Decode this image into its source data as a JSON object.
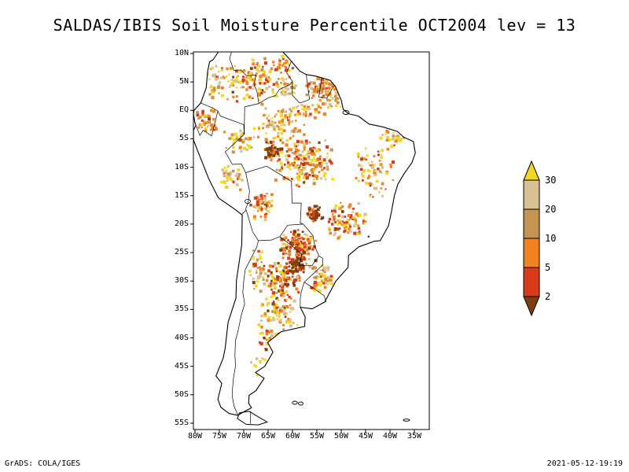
{
  "title": "SALDAS/IBIS Soil Moisture Percentile OCT2004 lev = 13",
  "footer": {
    "credit": "GrADS: COLA/IGES",
    "timestamp": "2021-05-12-19:19"
  },
  "axes": {
    "lat_labels": [
      "10N",
      "5N",
      "EQ",
      "5S",
      "10S",
      "15S",
      "20S",
      "25S",
      "30S",
      "35S",
      "40S",
      "45S",
      "50S",
      "55S"
    ],
    "lon_labels": [
      "80W",
      "75W",
      "70W",
      "65W",
      "60W",
      "55W",
      "50W",
      "45W",
      "40W",
      "35W"
    ]
  },
  "chart_data": {
    "type": "heatmap",
    "title": "SALDAS/IBIS Soil Moisture Percentile OCT2004 lev = 13",
    "region": "South America",
    "variable": "Soil Moisture Percentile",
    "time": "OCT2004",
    "level": 13,
    "xlim": [
      -80.3,
      -31.9
    ],
    "ylim": [
      -56.1,
      10.3
    ],
    "grid": false,
    "colorbar": {
      "orientation": "vertical",
      "levels": [
        "30",
        "20",
        "10",
        "5",
        "2"
      ],
      "colors": [
        "#f0d722",
        "#d9c196",
        "#c49552",
        "#f28322",
        "#d93a1c",
        "#7d3f10"
      ],
      "meaning": [
        "above 30",
        "20-30",
        "10-20",
        "5-10",
        "2-5",
        "below 2"
      ]
    },
    "clusters": [
      {
        "cx": 75,
        "cy": 35,
        "rx": 45,
        "ry": 32,
        "n": 130,
        "mix": [
          3,
          1,
          0.5,
          2,
          1,
          0.2
        ]
      },
      {
        "cx": 168,
        "cy": 46,
        "rx": 30,
        "ry": 28,
        "n": 150,
        "mix": [
          1,
          1.5,
          1,
          3,
          0.8,
          0.1
        ]
      },
      {
        "cx": 28,
        "cy": 38,
        "rx": 20,
        "ry": 26,
        "n": 40,
        "mix": [
          2,
          1,
          0.3,
          1,
          0.3,
          0
        ]
      },
      {
        "cx": 18,
        "cy": 88,
        "rx": 15,
        "ry": 18,
        "n": 45,
        "mix": [
          1,
          0.5,
          0.3,
          3,
          1,
          0.1
        ]
      },
      {
        "cx": 60,
        "cy": 112,
        "rx": 24,
        "ry": 18,
        "n": 45,
        "mix": [
          2,
          2,
          0.5,
          1,
          0.3,
          0
        ]
      },
      {
        "cx": 112,
        "cy": 92,
        "rx": 34,
        "ry": 24,
        "n": 85,
        "mix": [
          2,
          1,
          0.5,
          2,
          0.7,
          0.1
        ]
      },
      {
        "cx": 138,
        "cy": 140,
        "rx": 44,
        "ry": 34,
        "n": 220,
        "mix": [
          2,
          1,
          0.7,
          2,
          1.5,
          0.4
        ]
      },
      {
        "cx": 100,
        "cy": 124,
        "rx": 13,
        "ry": 11,
        "n": 55,
        "mix": [
          0.2,
          0,
          0.3,
          1,
          1.5,
          3
        ]
      },
      {
        "cx": 228,
        "cy": 152,
        "rx": 28,
        "ry": 38,
        "n": 75,
        "mix": [
          2,
          1,
          0.5,
          2,
          0.6,
          0.1
        ]
      },
      {
        "cx": 252,
        "cy": 112,
        "rx": 20,
        "ry": 16,
        "n": 35,
        "mix": [
          2,
          1,
          0.5,
          1,
          0.3,
          0
        ]
      },
      {
        "cx": 196,
        "cy": 214,
        "rx": 28,
        "ry": 26,
        "n": 105,
        "mix": [
          1.5,
          1,
          0.5,
          2,
          1.5,
          0.3
        ]
      },
      {
        "cx": 155,
        "cy": 205,
        "rx": 11,
        "ry": 11,
        "n": 50,
        "mix": [
          0.2,
          0,
          0.2,
          0.6,
          1,
          3
        ]
      },
      {
        "cx": 134,
        "cy": 248,
        "rx": 24,
        "ry": 24,
        "n": 150,
        "mix": [
          1,
          0.5,
          0.5,
          2,
          2,
          1
        ]
      },
      {
        "cx": 113,
        "cy": 290,
        "rx": 26,
        "ry": 24,
        "n": 130,
        "mix": [
          1,
          0.5,
          0.5,
          1.5,
          2,
          1.5
        ]
      },
      {
        "cx": 131,
        "cy": 271,
        "rx": 11,
        "ry": 11,
        "n": 45,
        "mix": [
          0.1,
          0,
          0.2,
          0.5,
          1,
          3
        ]
      },
      {
        "cx": 164,
        "cy": 288,
        "rx": 17,
        "ry": 19,
        "n": 65,
        "mix": [
          2,
          1,
          0.5,
          1.5,
          0.5,
          0.1
        ]
      },
      {
        "cx": 108,
        "cy": 330,
        "rx": 26,
        "ry": 24,
        "n": 85,
        "mix": [
          2,
          1.5,
          0.5,
          1,
          0.5,
          0.3
        ]
      },
      {
        "cx": 82,
        "cy": 278,
        "rx": 13,
        "ry": 28,
        "n": 45,
        "mix": [
          1.5,
          1,
          0.5,
          1,
          0.4,
          0.1
        ]
      },
      {
        "cx": 95,
        "cy": 364,
        "rx": 20,
        "ry": 17,
        "n": 40,
        "mix": [
          1.5,
          1,
          0.3,
          1,
          0.4,
          0.5
        ]
      },
      {
        "cx": 88,
        "cy": 398,
        "rx": 18,
        "ry": 16,
        "n": 15,
        "mix": [
          2,
          1,
          0,
          0.5,
          0.2,
          0
        ]
      },
      {
        "cx": 88,
        "cy": 196,
        "rx": 17,
        "ry": 21,
        "n": 65,
        "mix": [
          1.5,
          1,
          0.5,
          2,
          1,
          0.2
        ]
      },
      {
        "cx": 46,
        "cy": 160,
        "rx": 16,
        "ry": 20,
        "n": 38,
        "mix": [
          2,
          1.5,
          0.3,
          0.8,
          0.2,
          0
        ]
      },
      {
        "cx": 140,
        "cy": 74,
        "rx": 38,
        "ry": 11,
        "n": 35,
        "mix": [
          1,
          1,
          0.5,
          1,
          0.3,
          0
        ]
      },
      {
        "cx": 112,
        "cy": 16,
        "rx": 16,
        "ry": 11,
        "n": 28,
        "mix": [
          1,
          0.5,
          0.3,
          2,
          1,
          0.1
        ]
      },
      {
        "cx": 118,
        "cy": 44,
        "rx": 13,
        "ry": 13,
        "n": 30,
        "mix": [
          1,
          2,
          1,
          1,
          0.3,
          0
        ]
      }
    ]
  }
}
